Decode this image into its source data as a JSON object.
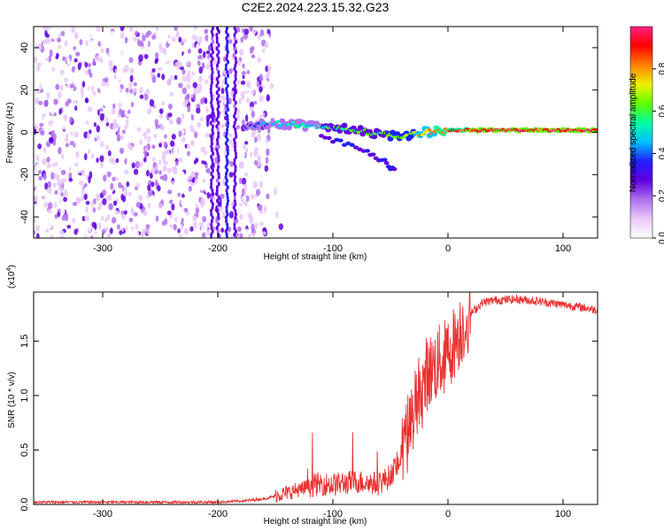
{
  "title": "C2E2.2024.223.15.32.G23",
  "chart_data": [
    {
      "type": "heatmap",
      "xlabel": "Height of straight line (km)",
      "ylabel": "Frequency (Hz)",
      "xlim": [
        -360,
        130
      ],
      "ylim": [
        -50,
        50
      ],
      "xticks": [
        -300,
        -200,
        -100,
        0,
        100
      ],
      "yticks": [
        -40,
        -20,
        0,
        20,
        40
      ],
      "grid": false,
      "colorbar": {
        "label": "Normalized spectral amplitude",
        "range": [
          0.0,
          1.0
        ],
        "ticks": [
          "0.0",
          "0.2",
          "0.4",
          "0.6",
          "0.8"
        ],
        "colormap": [
          "#ffffff",
          "#e8c8f8",
          "#b070f0",
          "#6000e0",
          "#2020ff",
          "#00c0ff",
          "#00ffa0",
          "#60ff00",
          "#f0f000",
          "#ff8000",
          "#ff0000",
          "#ff2080"
        ]
      },
      "features": {
        "noise_region_x": [
          -360,
          -155
        ],
        "direct_signal_track": [
          {
            "x": -175,
            "y": 3,
            "level": 0.35
          },
          {
            "x": -160,
            "y": 4,
            "level": 0.45
          },
          {
            "x": -140,
            "y": 4,
            "level": 0.5
          },
          {
            "x": -120,
            "y": 3,
            "level": 0.5
          },
          {
            "x": -100,
            "y": 2,
            "level": 0.55
          },
          {
            "x": -80,
            "y": 1,
            "level": 0.6
          },
          {
            "x": -60,
            "y": -1,
            "level": 0.6
          },
          {
            "x": -40,
            "y": -2,
            "level": 0.65
          },
          {
            "x": -20,
            "y": 0,
            "level": 0.75
          },
          {
            "x": 0,
            "y": 1,
            "level": 0.85
          },
          {
            "x": 20,
            "y": 1,
            "level": 0.9
          },
          {
            "x": 40,
            "y": 1,
            "level": 0.95
          },
          {
            "x": 60,
            "y": 1,
            "level": 0.95
          },
          {
            "x": 80,
            "y": 1,
            "level": 0.9
          },
          {
            "x": 100,
            "y": 1,
            "level": 0.95
          },
          {
            "x": 130,
            "y": 1,
            "level": 0.95
          }
        ],
        "branch_track": [
          {
            "x": -110,
            "y": -2
          },
          {
            "x": -90,
            "y": -5
          },
          {
            "x": -70,
            "y": -9
          },
          {
            "x": -55,
            "y": -14
          },
          {
            "x": -45,
            "y": -19
          }
        ],
        "vertical_streaks_x": [
          -205,
          -200,
          -192,
          -185
        ]
      }
    },
    {
      "type": "line",
      "xlabel": "Height of straight line (km)",
      "ylabel": "SNR (10 * v/v)",
      "y_multiplier": "(x10",
      "y_multiplier_exp": "4",
      "y_multiplier_close": ")",
      "xlim": [
        -360,
        130
      ],
      "ylim": [
        0,
        1.95
      ],
      "xticks": [
        -300,
        -200,
        -100,
        0,
        100
      ],
      "yticks": [
        "0.0",
        "0.5",
        "1.0",
        "1.5"
      ],
      "ytick_values": [
        0,
        0.5,
        1.0,
        1.5
      ],
      "grid": false,
      "color": "#e83030",
      "series": [
        {
          "x": [
            -360,
            -300,
            -250,
            -200,
            -180,
            -160,
            -140,
            -120,
            -110,
            -100,
            -80,
            -60,
            -50,
            -40,
            -35,
            -30,
            -25,
            -20,
            -15,
            -10,
            0,
            10,
            20,
            30,
            40,
            60,
            80,
            100,
            120,
            130
          ],
          "values": [
            0.02,
            0.02,
            0.02,
            0.02,
            0.03,
            0.05,
            0.1,
            0.16,
            0.18,
            0.17,
            0.2,
            0.18,
            0.25,
            0.45,
            0.6,
            0.8,
            1.05,
            1.15,
            1.2,
            1.25,
            1.35,
            1.55,
            1.75,
            1.85,
            1.87,
            1.88,
            1.86,
            1.83,
            1.8,
            1.78
          ]
        }
      ]
    }
  ]
}
